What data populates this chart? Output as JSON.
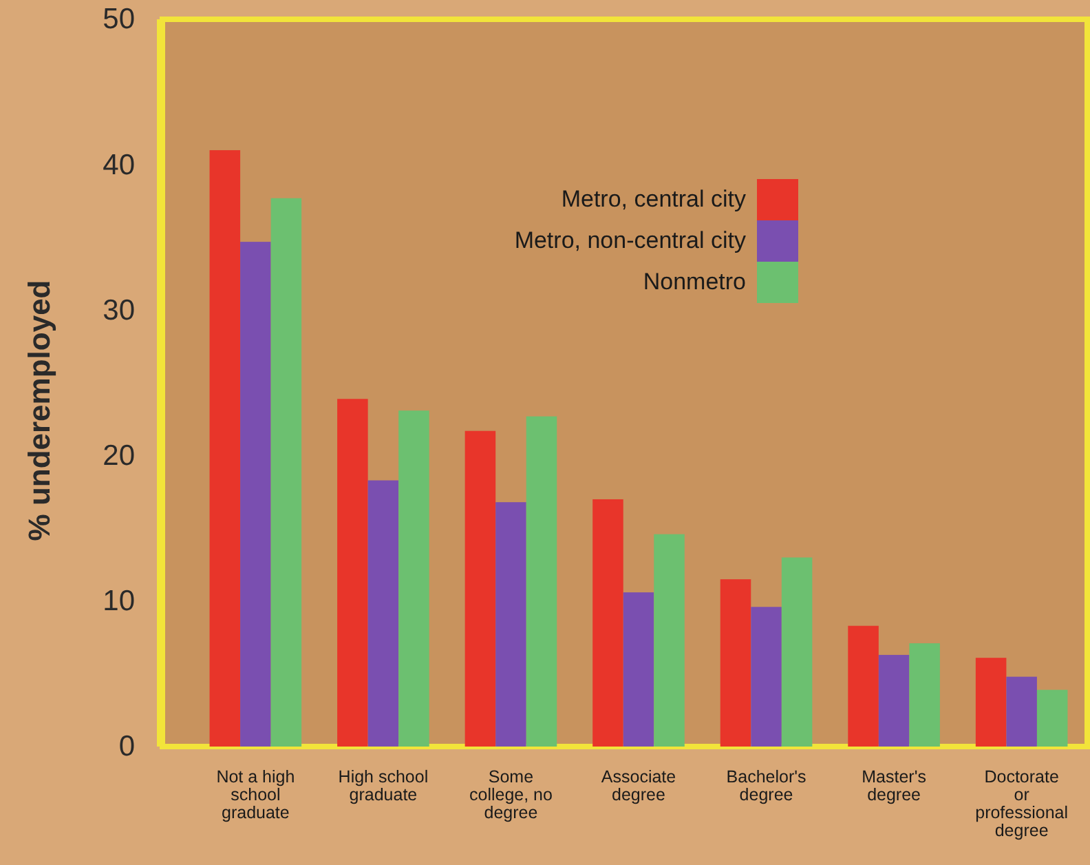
{
  "chart_data": {
    "type": "bar",
    "ylabel": "% underemployed",
    "categories": [
      "Not a high school graduate",
      "High school graduate",
      "Some college, no degree",
      "Associate degree",
      "Bachelor's degree",
      "Master's degree",
      "Doctorate or professional degree"
    ],
    "series": [
      {
        "name": "Metro, central city",
        "color": "#e8352a",
        "values": [
          41.0,
          23.9,
          21.7,
          17.0,
          11.5,
          8.3,
          6.1
        ]
      },
      {
        "name": "Metro, non-central city",
        "color": "#7a4fb0",
        "values": [
          34.7,
          18.3,
          16.8,
          10.6,
          9.6,
          6.3,
          4.8
        ]
      },
      {
        "name": "Nonmetro",
        "color": "#6cc070",
        "values": [
          37.7,
          23.1,
          22.7,
          14.6,
          13.0,
          7.1,
          3.9
        ]
      }
    ],
    "ylim": [
      0,
      50
    ],
    "yticks": [
      0,
      10,
      20,
      30,
      40,
      50
    ],
    "grid": false,
    "legend": "top"
  }
}
